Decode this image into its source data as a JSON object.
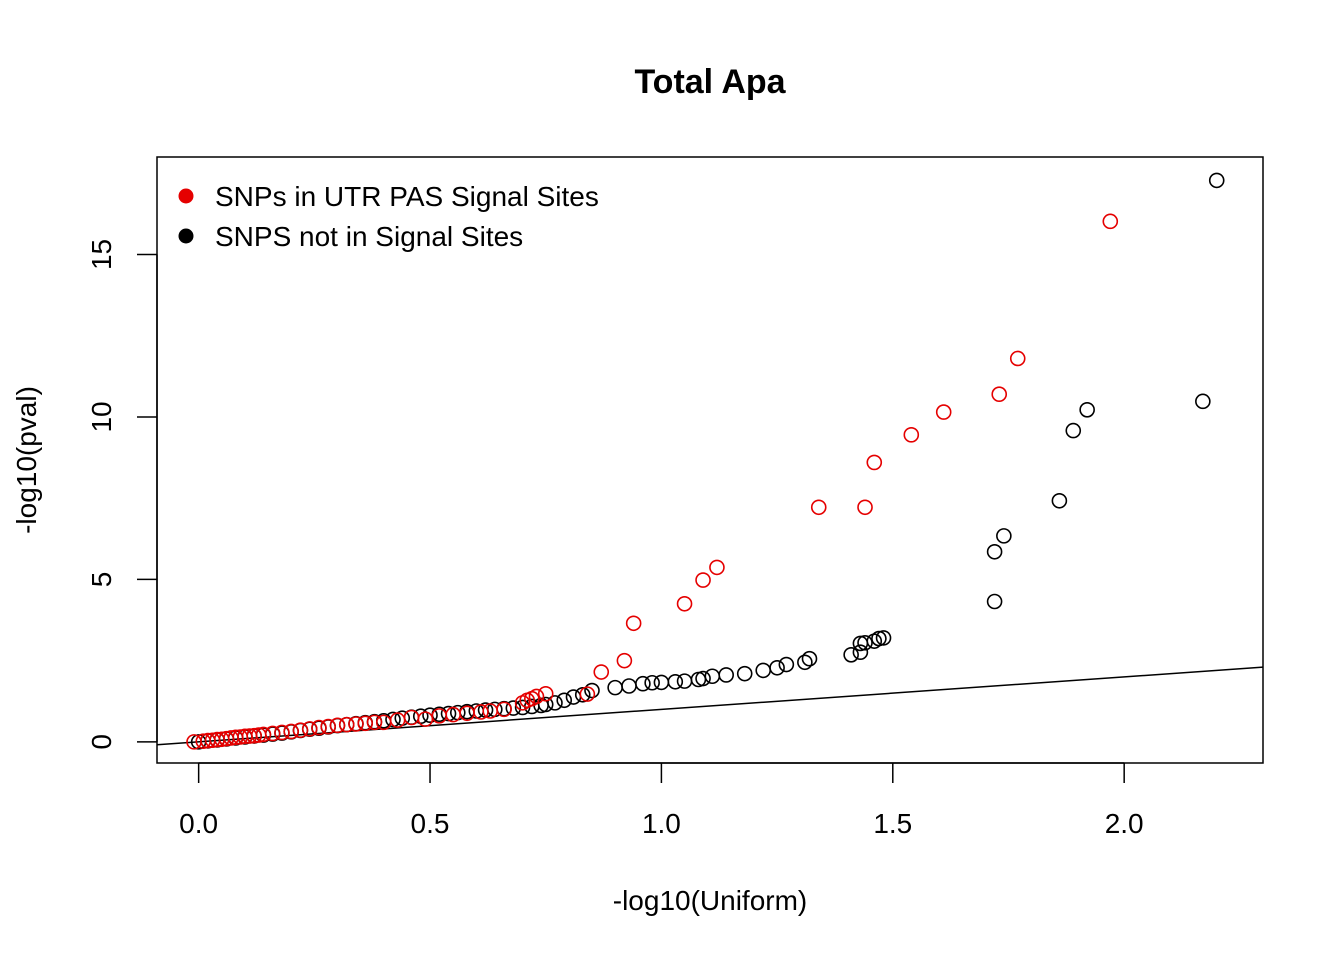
{
  "chart_data": {
    "type": "scatter",
    "title": "Total Apa",
    "xlabel": "-log10(Uniform)",
    "ylabel": "-log10(pval)",
    "xlim": [
      -0.09,
      2.3
    ],
    "ylim": [
      -0.65,
      18.0
    ],
    "x_ticks": [
      "0.0",
      "0.5",
      "1.0",
      "1.5",
      "2.0"
    ],
    "x_tick_values": [
      0,
      0.5,
      1,
      1.5,
      2
    ],
    "y_ticks": [
      "0",
      "5",
      "10",
      "15"
    ],
    "y_tick_values": [
      0,
      5,
      10,
      15
    ],
    "grid": false,
    "legend_position": "top-left",
    "reference_line": {
      "from": [
        -0.09,
        -0.09
      ],
      "to": [
        2.3,
        2.3
      ]
    },
    "series": [
      {
        "name": "SNPS not in Signal Sites",
        "color": "#000000",
        "points": [
          [
            0.0,
            0.0
          ],
          [
            0.02,
            0.03
          ],
          [
            0.04,
            0.06
          ],
          [
            0.06,
            0.09
          ],
          [
            0.08,
            0.12
          ],
          [
            0.1,
            0.15
          ],
          [
            0.12,
            0.18
          ],
          [
            0.14,
            0.21
          ],
          [
            0.16,
            0.24
          ],
          [
            0.18,
            0.27
          ],
          [
            0.2,
            0.31
          ],
          [
            0.22,
            0.35
          ],
          [
            0.24,
            0.39
          ],
          [
            0.26,
            0.42
          ],
          [
            0.28,
            0.46
          ],
          [
            0.3,
            0.5
          ],
          [
            0.32,
            0.53
          ],
          [
            0.34,
            0.56
          ],
          [
            0.36,
            0.59
          ],
          [
            0.38,
            0.62
          ],
          [
            0.4,
            0.65
          ],
          [
            0.42,
            0.69
          ],
          [
            0.44,
            0.73
          ],
          [
            0.46,
            0.76
          ],
          [
            0.48,
            0.79
          ],
          [
            0.5,
            0.82
          ],
          [
            0.52,
            0.85
          ],
          [
            0.54,
            0.87
          ],
          [
            0.56,
            0.9
          ],
          [
            0.58,
            0.93
          ],
          [
            0.6,
            0.95
          ],
          [
            0.62,
            0.98
          ],
          [
            0.64,
            1.0
          ],
          [
            0.66,
            1.02
          ],
          [
            0.68,
            1.04
          ],
          [
            0.7,
            1.06
          ],
          [
            0.72,
            1.09
          ],
          [
            0.74,
            1.12
          ],
          [
            0.75,
            1.15
          ],
          [
            0.77,
            1.2
          ],
          [
            0.79,
            1.28
          ],
          [
            0.81,
            1.38
          ],
          [
            0.83,
            1.45
          ],
          [
            0.85,
            1.58
          ],
          [
            0.9,
            1.67
          ],
          [
            0.93,
            1.72
          ],
          [
            0.96,
            1.79
          ],
          [
            0.98,
            1.82
          ],
          [
            1.0,
            1.83
          ],
          [
            1.03,
            1.85
          ],
          [
            1.05,
            1.87
          ],
          [
            1.08,
            1.92
          ],
          [
            1.09,
            1.95
          ],
          [
            1.11,
            2.02
          ],
          [
            1.14,
            2.06
          ],
          [
            1.18,
            2.1
          ],
          [
            1.22,
            2.2
          ],
          [
            1.25,
            2.28
          ],
          [
            1.27,
            2.38
          ],
          [
            1.31,
            2.45
          ],
          [
            1.32,
            2.56
          ],
          [
            1.41,
            2.68
          ],
          [
            1.43,
            2.76
          ],
          [
            1.43,
            3.03
          ],
          [
            1.44,
            3.05
          ],
          [
            1.46,
            3.1
          ],
          [
            1.47,
            3.18
          ],
          [
            1.48,
            3.2
          ],
          [
            1.72,
            4.32
          ],
          [
            1.72,
            5.85
          ],
          [
            1.74,
            6.34
          ],
          [
            1.86,
            7.42
          ],
          [
            1.89,
            9.58
          ],
          [
            1.92,
            10.22
          ],
          [
            2.17,
            10.48
          ],
          [
            2.2,
            17.28
          ]
        ]
      },
      {
        "name": "SNPs in UTR PAS Signal Sites",
        "color": "#e50000",
        "points": [
          [
            -0.01,
            0.0
          ],
          [
            0.01,
            0.02
          ],
          [
            0.02,
            0.04
          ],
          [
            0.03,
            0.05
          ],
          [
            0.04,
            0.07
          ],
          [
            0.05,
            0.08
          ],
          [
            0.06,
            0.1
          ],
          [
            0.07,
            0.12
          ],
          [
            0.08,
            0.14
          ],
          [
            0.09,
            0.15
          ],
          [
            0.1,
            0.17
          ],
          [
            0.11,
            0.18
          ],
          [
            0.12,
            0.19
          ],
          [
            0.13,
            0.21
          ],
          [
            0.14,
            0.23
          ],
          [
            0.16,
            0.26
          ],
          [
            0.18,
            0.29
          ],
          [
            0.2,
            0.32
          ],
          [
            0.22,
            0.36
          ],
          [
            0.24,
            0.4
          ],
          [
            0.26,
            0.44
          ],
          [
            0.28,
            0.47
          ],
          [
            0.3,
            0.51
          ],
          [
            0.32,
            0.53
          ],
          [
            0.34,
            0.55
          ],
          [
            0.36,
            0.57
          ],
          [
            0.38,
            0.6
          ],
          [
            0.4,
            0.6
          ],
          [
            0.43,
            0.67
          ],
          [
            0.46,
            0.75
          ],
          [
            0.49,
            0.7
          ],
          [
            0.52,
            0.8
          ],
          [
            0.55,
            0.84
          ],
          [
            0.58,
            0.88
          ],
          [
            0.61,
            0.92
          ],
          [
            0.63,
            0.95
          ],
          [
            0.66,
            1.0
          ],
          [
            0.7,
            1.2
          ],
          [
            0.71,
            1.28
          ],
          [
            0.72,
            1.33
          ],
          [
            0.73,
            1.4
          ],
          [
            0.75,
            1.48
          ],
          [
            0.84,
            1.47
          ],
          [
            0.87,
            2.15
          ],
          [
            0.92,
            2.5
          ],
          [
            0.94,
            3.65
          ],
          [
            1.05,
            4.25
          ],
          [
            1.09,
            4.98
          ],
          [
            1.12,
            5.37
          ],
          [
            1.34,
            7.22
          ],
          [
            1.44,
            7.22
          ],
          [
            1.46,
            8.6
          ],
          [
            1.54,
            9.45
          ],
          [
            1.61,
            10.15
          ],
          [
            1.73,
            10.7
          ],
          [
            1.77,
            11.8
          ],
          [
            1.97,
            16.02
          ]
        ]
      }
    ]
  }
}
